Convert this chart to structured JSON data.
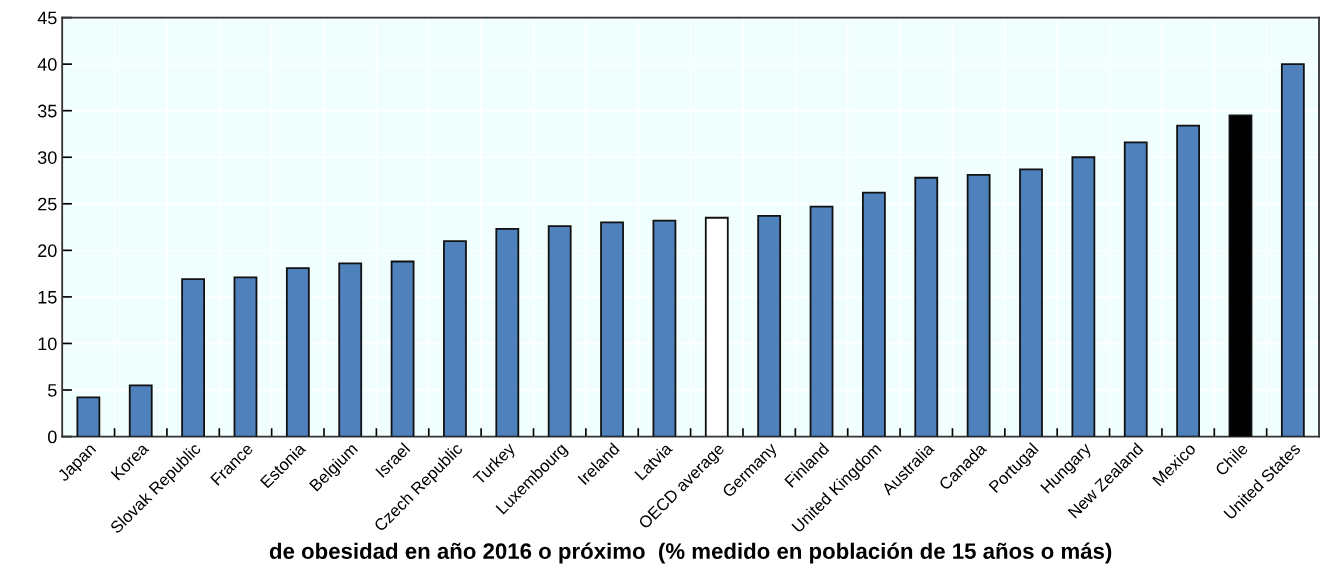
{
  "chart_data": {
    "type": "bar",
    "xlabel": "de obesidad en año 2016 o próximo  (% medido en población de 15 años o más)",
    "categories": [
      "Japan",
      "Korea",
      "Slovak Republic",
      "France",
      "Estonia",
      "Belgium",
      "Israel",
      "Czech Republic",
      "Turkey",
      "Luxembourg",
      "Ireland",
      "Latvia",
      "OECD average",
      "Germany",
      "Finland",
      "United Kingdom",
      "Australia",
      "Canada",
      "Portugal",
      "Hungary",
      "New Zealand",
      "Mexico",
      "Chile",
      "United States"
    ],
    "values": [
      4.2,
      5.5,
      16.9,
      17.1,
      18.1,
      18.6,
      18.8,
      21.0,
      22.3,
      22.6,
      23.0,
      23.2,
      23.5,
      23.7,
      24.7,
      26.2,
      27.8,
      28.1,
      28.7,
      30.0,
      31.6,
      33.4,
      34.5,
      40.0
    ],
    "colors": [
      "#4f81bd",
      "#4f81bd",
      "#4f81bd",
      "#4f81bd",
      "#4f81bd",
      "#4f81bd",
      "#4f81bd",
      "#4f81bd",
      "#4f81bd",
      "#4f81bd",
      "#4f81bd",
      "#4f81bd",
      "#ffffff",
      "#4f81bd",
      "#4f81bd",
      "#4f81bd",
      "#4f81bd",
      "#4f81bd",
      "#4f81bd",
      "#4f81bd",
      "#4f81bd",
      "#4f81bd",
      "#000000",
      "#4f81bd"
    ],
    "ylim": [
      0,
      45
    ],
    "yticks": [
      0,
      5,
      10,
      15,
      20,
      25,
      30,
      35,
      40,
      45
    ],
    "grid": true
  }
}
